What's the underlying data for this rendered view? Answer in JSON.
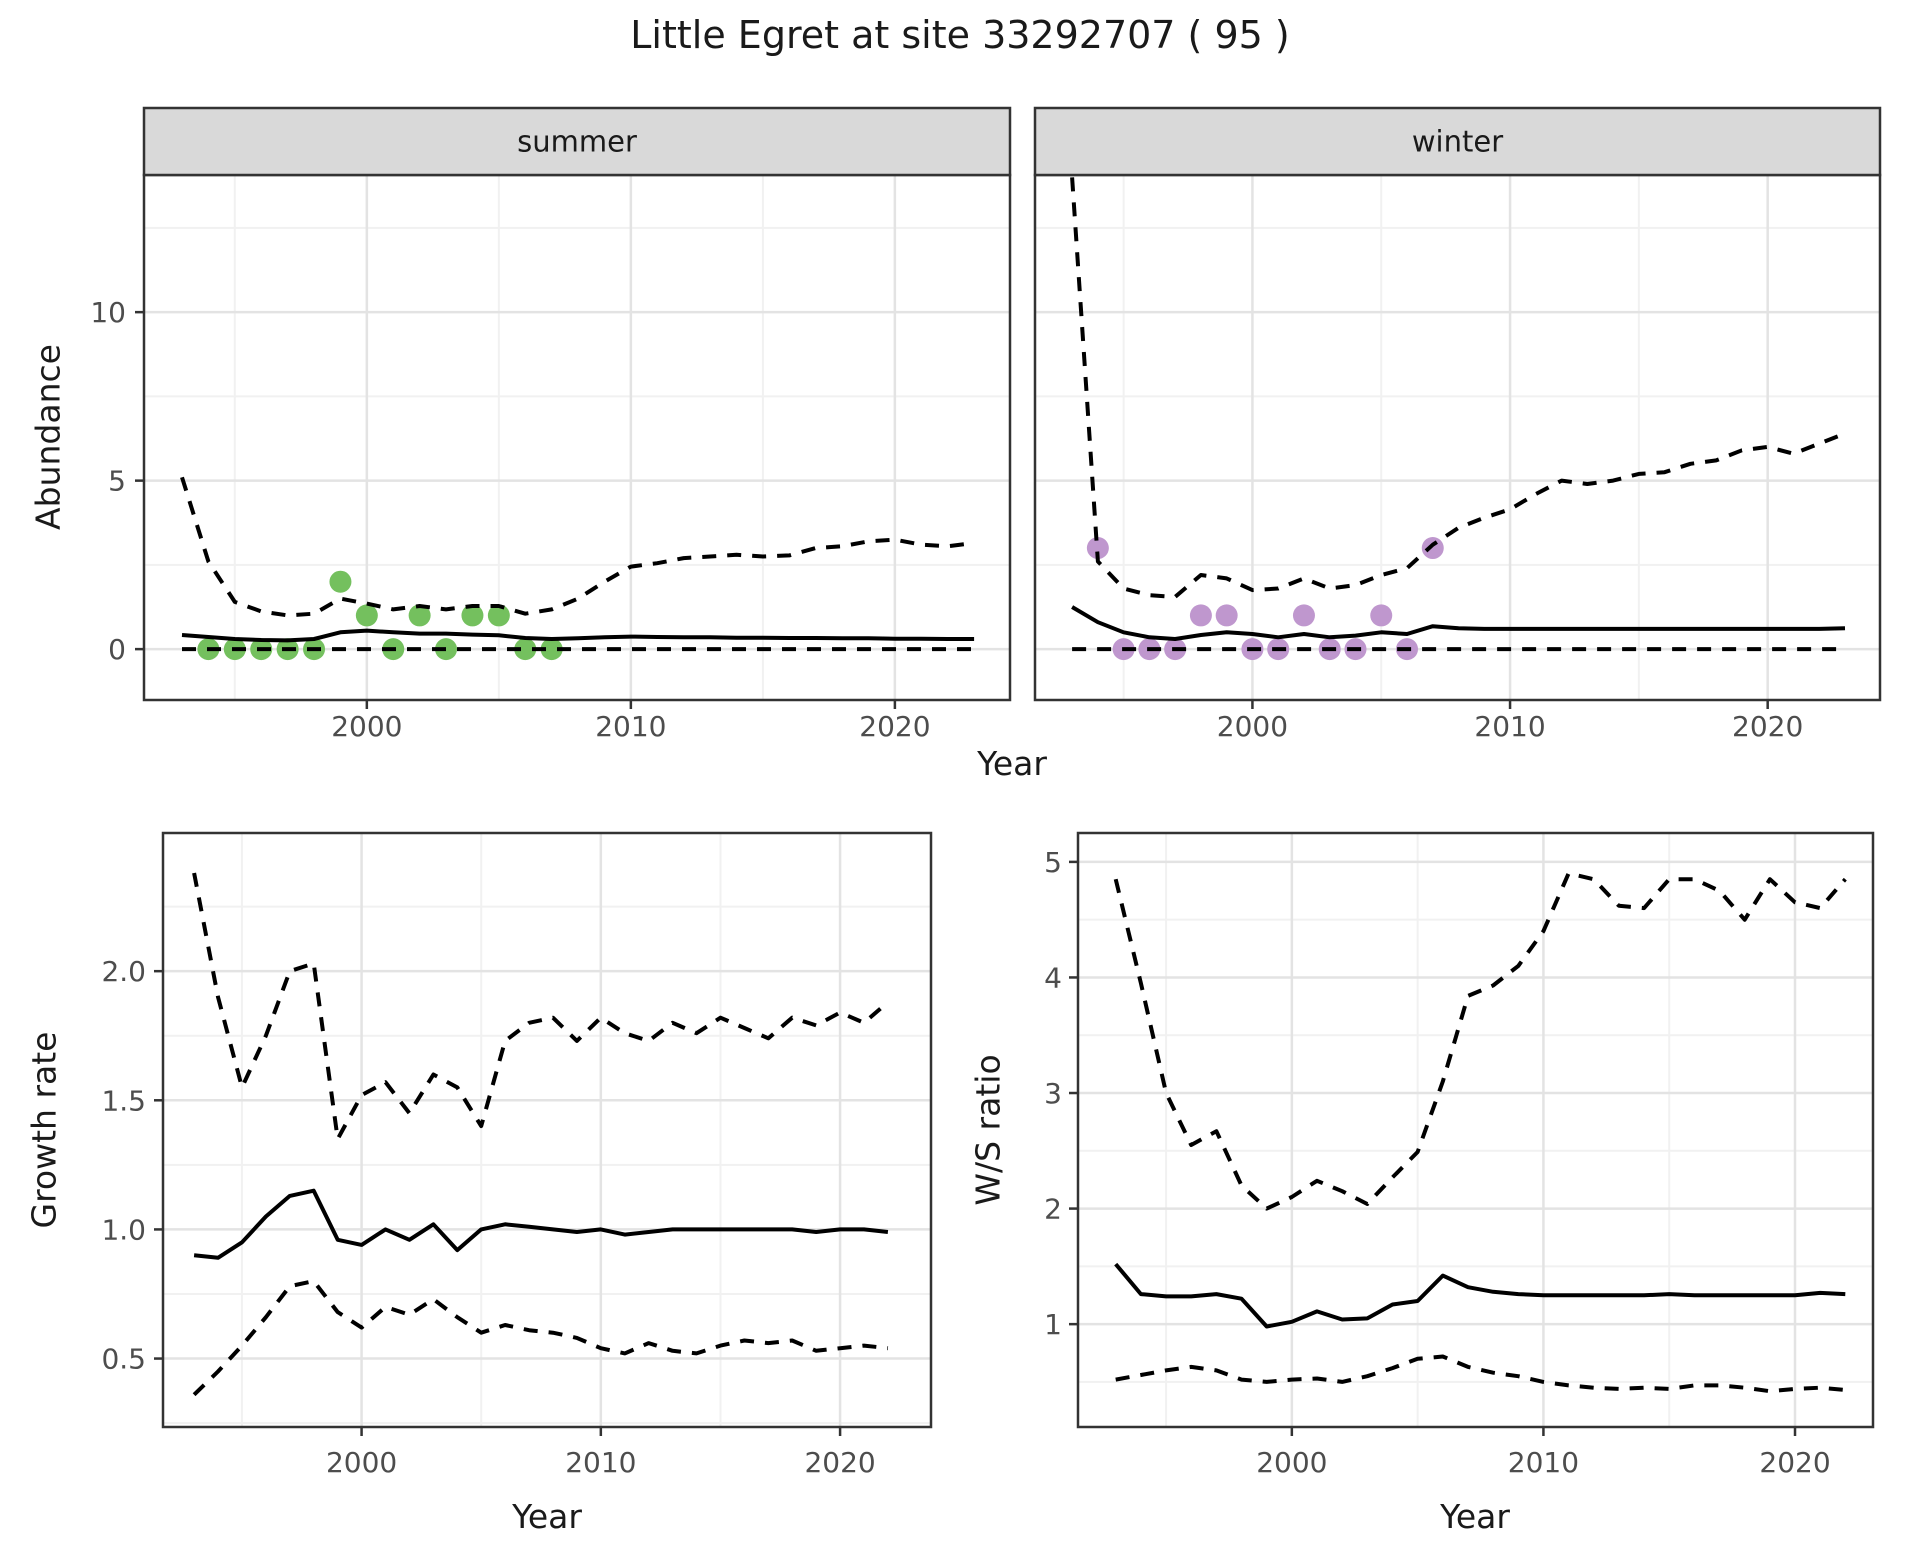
{
  "title": "Little Egret at site 33292707 ( 95 )",
  "colors": {
    "point_summer": "#74c05e",
    "point_winter": "#bf97ce",
    "line": "#000000",
    "strip_fill": "#d9d9d9",
    "panel_border": "#333333",
    "grid_major": "#e3e3e3",
    "grid_minor": "#f1f1f1",
    "tick": "#333333",
    "tick_label": "#4d4d4d",
    "background": "#ffffff"
  },
  "chart_data": [
    {
      "id": "abundance",
      "type": "line",
      "xlabel": "Year",
      "ylabel": "Abundance",
      "xlim": [
        1991.56,
        2024.36
      ],
      "ylim": [
        -1.51,
        14.07
      ],
      "x_ticks": [
        2000,
        2010,
        2020
      ],
      "x_tick_labels": [
        "2000",
        "2010",
        "2020"
      ],
      "y_ticks": [
        0,
        5,
        10
      ],
      "y_tick_labels": [
        "0",
        "5",
        "10"
      ],
      "grid": true,
      "legend": "none",
      "x": [
        1993,
        1994,
        1995,
        1996,
        1997,
        1998,
        1999,
        2000,
        2001,
        2002,
        2003,
        2004,
        2005,
        2006,
        2007,
        2008,
        2009,
        2010,
        2011,
        2012,
        2013,
        2014,
        2015,
        2016,
        2017,
        2018,
        2019,
        2020,
        2021,
        2022,
        2023
      ],
      "facets": [
        {
          "label": "summer",
          "series": [
            {
              "name": "lower_ci",
              "style": "dashed",
              "values": [
                0,
                0,
                0,
                0,
                0,
                0,
                0,
                0,
                0,
                0,
                0,
                0,
                0,
                0,
                0,
                0,
                0,
                0,
                0,
                0,
                0,
                0,
                0,
                0,
                0,
                0,
                0,
                0,
                0,
                0,
                0
              ]
            },
            {
              "name": "upper_ci",
              "style": "dashed",
              "values": [
                5.1,
                2.6,
                1.4,
                1.12,
                1.0,
                1.05,
                1.5,
                1.35,
                1.18,
                1.28,
                1.18,
                1.28,
                1.28,
                1.05,
                1.18,
                1.5,
                2.0,
                2.45,
                2.55,
                2.7,
                2.75,
                2.8,
                2.75,
                2.78,
                3.0,
                3.05,
                3.2,
                3.25,
                3.1,
                3.05,
                3.15
              ]
            },
            {
              "name": "fitted",
              "style": "solid",
              "values": [
                0.42,
                0.36,
                0.3,
                0.27,
                0.26,
                0.3,
                0.5,
                0.55,
                0.5,
                0.46,
                0.46,
                0.43,
                0.41,
                0.33,
                0.3,
                0.32,
                0.35,
                0.37,
                0.36,
                0.35,
                0.35,
                0.34,
                0.34,
                0.33,
                0.33,
                0.32,
                0.32,
                0.31,
                0.31,
                0.3,
                0.3
              ]
            }
          ],
          "points": {
            "name": "observed-counts",
            "color_key": "point_summer",
            "x": [
              1994,
              1995,
              1996,
              1997,
              1998,
              1999,
              2000,
              2001,
              2002,
              2003,
              2004,
              2005,
              2006,
              2007
            ],
            "y": [
              0,
              0,
              0,
              0,
              0,
              2,
              1,
              0,
              1,
              0,
              1,
              1,
              0,
              0
            ]
          }
        },
        {
          "label": "winter",
          "series": [
            {
              "name": "lower_ci",
              "style": "dashed",
              "values": [
                0,
                0,
                0,
                0,
                0,
                0,
                0,
                0,
                0,
                0,
                0,
                0,
                0,
                0,
                0,
                0,
                0,
                0,
                0,
                0,
                0,
                0,
                0,
                0,
                0,
                0,
                0,
                0,
                0,
                0,
                0
              ]
            },
            {
              "name": "upper_ci",
              "style": "dashed",
              "values": [
                14.0,
                2.6,
                1.8,
                1.6,
                1.55,
                2.2,
                2.1,
                1.75,
                1.8,
                2.1,
                1.8,
                1.9,
                2.2,
                2.4,
                3.1,
                3.6,
                3.9,
                4.15,
                4.6,
                5.0,
                4.9,
                5.0,
                5.2,
                5.25,
                5.5,
                5.6,
                5.9,
                6.0,
                5.8,
                6.1,
                6.4
              ]
            },
            {
              "name": "fitted",
              "style": "solid",
              "values": [
                1.25,
                0.8,
                0.5,
                0.35,
                0.3,
                0.42,
                0.5,
                0.45,
                0.35,
                0.45,
                0.35,
                0.4,
                0.5,
                0.45,
                0.68,
                0.62,
                0.6,
                0.6,
                0.6,
                0.6,
                0.6,
                0.6,
                0.6,
                0.6,
                0.6,
                0.6,
                0.6,
                0.6,
                0.6,
                0.6,
                0.62
              ]
            }
          ],
          "points": {
            "name": "observed-counts",
            "color_key": "point_winter",
            "x": [
              1994,
              1995,
              1996,
              1997,
              1998,
              1999,
              2000,
              2001,
              2002,
              2003,
              2004,
              2005,
              2006,
              2007
            ],
            "y": [
              3,
              0,
              0,
              0,
              1,
              1,
              0,
              0,
              1,
              0,
              0,
              1,
              0,
              3
            ]
          }
        }
      ]
    },
    {
      "id": "growth_rate",
      "type": "line",
      "xlabel": "Year",
      "ylabel": "Growth rate",
      "xlim": [
        1991.7,
        2023.8
      ],
      "ylim": [
        0.235,
        2.535
      ],
      "x_ticks": [
        2000,
        2010,
        2020
      ],
      "x_tick_labels": [
        "2000",
        "2010",
        "2020"
      ],
      "y_ticks": [
        0.5,
        1.0,
        1.5,
        2.0
      ],
      "y_tick_labels": [
        "0.5",
        "1.0",
        "1.5",
        "2.0"
      ],
      "grid": true,
      "legend": "none",
      "x": [
        1993,
        1994,
        1995,
        1996,
        1997,
        1998,
        1999,
        2000,
        2001,
        2002,
        2003,
        2004,
        2005,
        2006,
        2007,
        2008,
        2009,
        2010,
        2011,
        2012,
        2013,
        2014,
        2015,
        2016,
        2017,
        2018,
        2019,
        2020,
        2021,
        2022
      ],
      "facets": [
        {
          "label": "",
          "series": [
            {
              "name": "lower_ci",
              "style": "dashed",
              "values": [
                0.36,
                0.45,
                0.55,
                0.66,
                0.78,
                0.8,
                0.68,
                0.62,
                0.7,
                0.67,
                0.73,
                0.66,
                0.6,
                0.63,
                0.61,
                0.6,
                0.58,
                0.54,
                0.52,
                0.56,
                0.53,
                0.52,
                0.55,
                0.57,
                0.56,
                0.57,
                0.53,
                0.54,
                0.55,
                0.54
              ]
            },
            {
              "name": "upper_ci",
              "style": "dashed",
              "values": [
                2.38,
                1.9,
                1.55,
                1.75,
                2.0,
                2.03,
                1.35,
                1.52,
                1.57,
                1.45,
                1.6,
                1.55,
                1.4,
                1.73,
                1.8,
                1.82,
                1.73,
                1.82,
                1.76,
                1.73,
                1.8,
                1.76,
                1.82,
                1.78,
                1.74,
                1.82,
                1.79,
                1.84,
                1.8,
                1.88
              ]
            },
            {
              "name": "fitted",
              "style": "solid",
              "values": [
                0.9,
                0.89,
                0.95,
                1.05,
                1.13,
                1.15,
                0.96,
                0.94,
                1.0,
                0.96,
                1.02,
                0.92,
                1.0,
                1.02,
                1.01,
                1.0,
                0.99,
                1.0,
                0.98,
                0.99,
                1.0,
                1.0,
                1.0,
                1.0,
                1.0,
                1.0,
                0.99,
                1.0,
                1.0,
                0.99
              ]
            }
          ],
          "points": null
        }
      ]
    },
    {
      "id": "ws_ratio",
      "type": "line",
      "xlabel": "Year",
      "ylabel": "W/S ratio",
      "xlim": [
        1991.5,
        2023.1
      ],
      "ylim": [
        0.11,
        5.25
      ],
      "x_ticks": [
        2000,
        2010,
        2020
      ],
      "x_tick_labels": [
        "2000",
        "2010",
        "2020"
      ],
      "y_ticks": [
        1,
        2,
        3,
        4,
        5
      ],
      "y_tick_labels": [
        "1",
        "2",
        "3",
        "4",
        "5"
      ],
      "grid": true,
      "legend": "none",
      "x": [
        1993,
        1994,
        1995,
        1996,
        1997,
        1998,
        1999,
        2000,
        2001,
        2002,
        2003,
        2004,
        2005,
        2006,
        2007,
        2008,
        2009,
        2010,
        2011,
        2012,
        2013,
        2014,
        2015,
        2016,
        2017,
        2018,
        2019,
        2020,
        2021,
        2022
      ],
      "facets": [
        {
          "label": "",
          "series": [
            {
              "name": "lower_ci",
              "style": "dashed",
              "values": [
                0.52,
                0.56,
                0.6,
                0.63,
                0.6,
                0.52,
                0.5,
                0.52,
                0.53,
                0.5,
                0.55,
                0.62,
                0.7,
                0.72,
                0.63,
                0.58,
                0.55,
                0.5,
                0.47,
                0.45,
                0.44,
                0.45,
                0.44,
                0.47,
                0.47,
                0.45,
                0.42,
                0.44,
                0.45,
                0.43
              ]
            },
            {
              "name": "upper_ci",
              "style": "dashed",
              "values": [
                4.85,
                3.95,
                3.0,
                2.55,
                2.67,
                2.2,
                2.0,
                2.1,
                2.24,
                2.15,
                2.04,
                2.27,
                2.49,
                3.1,
                3.84,
                3.93,
                4.1,
                4.4,
                4.9,
                4.85,
                4.62,
                4.6,
                4.85,
                4.85,
                4.75,
                4.5,
                4.85,
                4.65,
                4.6,
                4.85
              ]
            },
            {
              "name": "fitted",
              "style": "solid",
              "values": [
                1.52,
                1.26,
                1.24,
                1.24,
                1.26,
                1.22,
                0.98,
                1.02,
                1.11,
                1.04,
                1.05,
                1.17,
                1.2,
                1.42,
                1.32,
                1.28,
                1.26,
                1.25,
                1.25,
                1.25,
                1.25,
                1.25,
                1.26,
                1.25,
                1.25,
                1.25,
                1.25,
                1.25,
                1.27,
                1.26
              ]
            }
          ],
          "points": null
        }
      ]
    }
  ]
}
